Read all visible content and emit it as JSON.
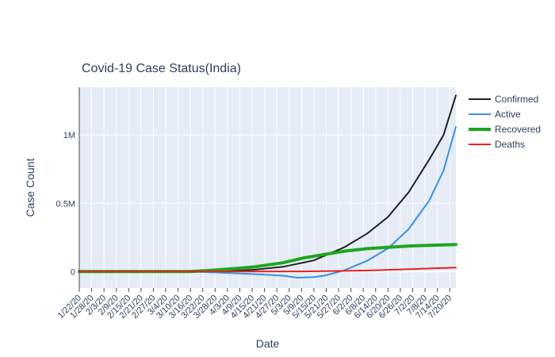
{
  "chart_data": {
    "type": "line",
    "title": "Covid-19 Case Status(India)",
    "xlabel": "Date",
    "ylabel": "Case Count",
    "grid": true,
    "legend_position": "top-right",
    "ylim": [
      -120000,
      1350000
    ],
    "y_ticks": [
      0,
      500000,
      1000000
    ],
    "y_tick_labels": [
      "0",
      "0.5M",
      "1M"
    ],
    "x_range": [
      "1/22/20",
      "7/23/20"
    ],
    "x_ticks": [
      "1/22/20",
      "1/28/20",
      "2/3/20",
      "2/9/20",
      "2/15/20",
      "2/21/20",
      "2/27/20",
      "3/4/20",
      "3/10/20",
      "3/16/20",
      "3/22/20",
      "3/28/20",
      "4/3/20",
      "4/9/20",
      "4/15/20",
      "4/21/20",
      "4/27/20",
      "5/3/20",
      "5/9/20",
      "5/15/20",
      "5/21/20",
      "5/27/20",
      "6/2/20",
      "6/8/20",
      "6/14/20",
      "6/20/20",
      "6/26/20",
      "7/2/20",
      "7/8/20",
      "7/14/20",
      "7/20/20"
    ],
    "series": [
      {
        "name": "Confirmed",
        "color": "#222222",
        "width": 2,
        "x": [
          "1/22/20",
          "3/10/20",
          "3/31/20",
          "4/15/20",
          "4/30/20",
          "5/15/20",
          "5/30/20",
          "6/10/20",
          "6/20/20",
          "6/30/20",
          "7/10/20",
          "7/17/20",
          "7/23/20"
        ],
        "values": [
          0,
          100,
          1500,
          12000,
          35000,
          82000,
          180000,
          280000,
          400000,
          580000,
          820000,
          1000000,
          1290000
        ]
      },
      {
        "name": "Active",
        "color": "#3b8fe0",
        "width": 2,
        "x": [
          "1/22/20",
          "3/16/20",
          "3/31/20",
          "4/15/20",
          "4/30/20",
          "5/5/20",
          "5/7/20",
          "5/15/20",
          "5/20/20",
          "5/30/20",
          "6/10/20",
          "6/20/20",
          "6/30/20",
          "7/10/20",
          "7/17/20",
          "7/23/20"
        ],
        "values": [
          0,
          0,
          -8000,
          -18000,
          -30000,
          -40000,
          -45000,
          -40000,
          -30000,
          10000,
          80000,
          170000,
          310000,
          520000,
          740000,
          1060000
        ]
      },
      {
        "name": "Recovered",
        "color": "#1fa51f",
        "width": 4,
        "x": [
          "1/22/20",
          "3/16/20",
          "3/31/20",
          "4/15/20",
          "4/30/20",
          "5/10/20",
          "5/20/20",
          "5/30/20",
          "6/10/20",
          "6/20/20",
          "7/1/20",
          "7/23/20"
        ],
        "values": [
          0,
          0,
          14000,
          32000,
          65000,
          100000,
          125000,
          150000,
          168000,
          178000,
          188000,
          198000
        ]
      },
      {
        "name": "Deaths",
        "color": "#e8211d",
        "width": 2,
        "x": [
          "1/22/20",
          "3/16/20",
          "5/10/20",
          "6/10/20",
          "7/1/20",
          "7/23/20"
        ],
        "values": [
          0,
          0,
          1500,
          8000,
          18000,
          30000
        ]
      }
    ]
  }
}
